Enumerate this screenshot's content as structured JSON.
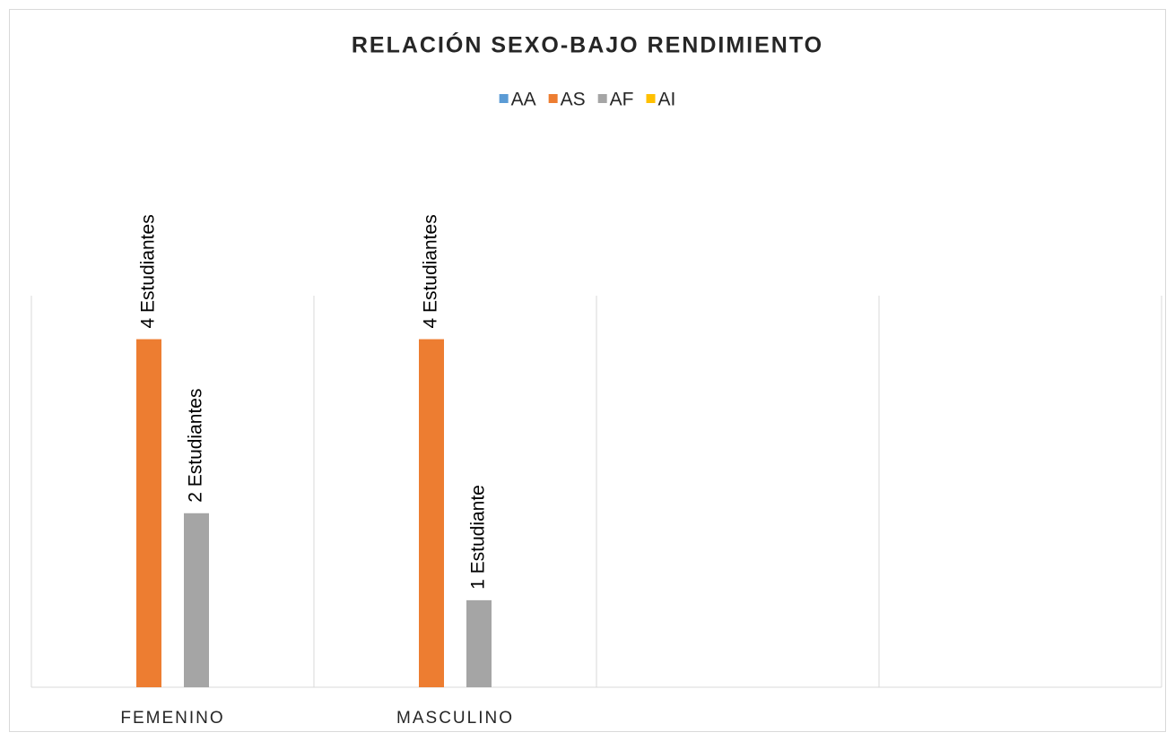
{
  "chart_data": {
    "type": "bar",
    "title": "RELACIÓN SEXO-BAJO RENDIMIENTO",
    "categories": [
      "FEMENINO",
      "MASCULINO",
      null,
      null
    ],
    "series": [
      {
        "name": "AA",
        "color": "#5b9bd5",
        "values": [
          null,
          null,
          null,
          null
        ]
      },
      {
        "name": "AS",
        "color": "#ed7d31",
        "values": [
          4,
          4,
          null,
          null
        ],
        "value_labels": [
          "4 Estudiantes",
          "4 Estudiantes",
          null,
          null
        ]
      },
      {
        "name": "AF",
        "color": "#a5a5a5",
        "values": [
          2,
          1,
          null,
          null
        ],
        "value_labels": [
          "2 Estudiantes",
          "1 Estudiante",
          null,
          null
        ]
      },
      {
        "name": "AI",
        "color": "#ffc000",
        "values": [
          null,
          null,
          null,
          null
        ]
      }
    ],
    "ylim": [
      0,
      4.5
    ],
    "legend": "top"
  }
}
